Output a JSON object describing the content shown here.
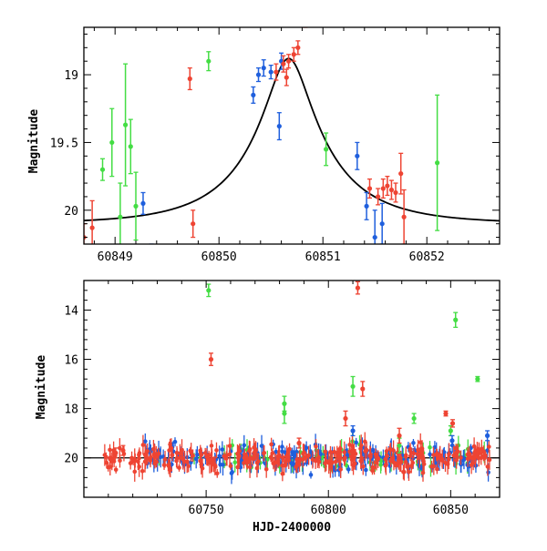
{
  "colors": {
    "green": "#44dd44",
    "blue": "#1f5fdd",
    "red": "#ee4433",
    "curve": "#000000"
  },
  "chart_data": [
    {
      "type": "scatter",
      "title": "",
      "xlabel": "",
      "ylabel": "Magnitude",
      "xlim": [
        60848.7,
        60852.7
      ],
      "ylim": [
        20.25,
        18.65
      ],
      "y_inverted": true,
      "xticks": [
        60849,
        60850,
        60851,
        60852
      ],
      "xtick_labels": [
        "60849",
        "60850",
        "60851",
        "60852"
      ],
      "yticks": [
        19,
        19.5,
        20
      ],
      "ytick_labels": [
        "19",
        "19.5",
        "20"
      ],
      "model_curve": {
        "type": "microlensing",
        "peak_x": 60850.67,
        "peak_mag": 18.88,
        "base_mag": 20.1,
        "u0": 0.235,
        "tE_days": 0.83
      },
      "series": [
        {
          "color": "green",
          "points": [
            {
              "x": 60848.88,
              "y": 19.7,
              "err": 0.08
            },
            {
              "x": 60848.97,
              "y": 19.5,
              "err": 0.25
            },
            {
              "x": 60849.05,
              "y": 20.05,
              "err": 0.25
            },
            {
              "x": 60849.1,
              "y": 19.37,
              "err": 0.45
            },
            {
              "x": 60849.15,
              "y": 19.53,
              "err": 0.2
            },
            {
              "x": 60849.2,
              "y": 19.97,
              "err": 0.25
            },
            {
              "x": 60849.9,
              "y": 18.9,
              "err": 0.07
            },
            {
              "x": 60851.03,
              "y": 19.55,
              "err": 0.12
            },
            {
              "x": 60852.1,
              "y": 19.65,
              "err": 0.5
            }
          ]
        },
        {
          "color": "blue",
          "points": [
            {
              "x": 60849.27,
              "y": 19.95,
              "err": 0.08
            },
            {
              "x": 60849.35,
              "y": 20.3,
              "err": 0.05
            },
            {
              "x": 60850.33,
              "y": 19.15,
              "err": 0.06
            },
            {
              "x": 60850.38,
              "y": 19.0,
              "err": 0.05
            },
            {
              "x": 60850.43,
              "y": 18.95,
              "err": 0.06
            },
            {
              "x": 60850.5,
              "y": 18.98,
              "err": 0.05
            },
            {
              "x": 60850.58,
              "y": 19.38,
              "err": 0.1
            },
            {
              "x": 60850.6,
              "y": 18.9,
              "err": 0.06
            },
            {
              "x": 60851.33,
              "y": 19.6,
              "err": 0.1
            },
            {
              "x": 60851.42,
              "y": 19.97,
              "err": 0.1
            },
            {
              "x": 60851.5,
              "y": 20.2,
              "err": 0.2
            },
            {
              "x": 60851.57,
              "y": 20.1,
              "err": 0.15
            }
          ]
        },
        {
          "color": "red",
          "points": [
            {
              "x": 60848.7,
              "y": 20.2,
              "err": 0.1
            },
            {
              "x": 60848.78,
              "y": 20.13,
              "err": 0.2
            },
            {
              "x": 60849.72,
              "y": 19.03,
              "err": 0.08
            },
            {
              "x": 60849.75,
              "y": 20.1,
              "err": 0.1
            },
            {
              "x": 60850.55,
              "y": 18.98,
              "err": 0.06
            },
            {
              "x": 60850.62,
              "y": 18.92,
              "err": 0.06
            },
            {
              "x": 60850.65,
              "y": 19.02,
              "err": 0.06
            },
            {
              "x": 60850.67,
              "y": 18.9,
              "err": 0.05
            },
            {
              "x": 60850.72,
              "y": 18.85,
              "err": 0.05
            },
            {
              "x": 60850.76,
              "y": 18.8,
              "err": 0.05
            },
            {
              "x": 60850.83,
              "y": 18.6,
              "err": 0.05
            },
            {
              "x": 60851.45,
              "y": 19.84,
              "err": 0.07
            },
            {
              "x": 60851.53,
              "y": 19.9,
              "err": 0.06
            },
            {
              "x": 60851.58,
              "y": 19.84,
              "err": 0.07
            },
            {
              "x": 60851.62,
              "y": 19.82,
              "err": 0.07
            },
            {
              "x": 60851.66,
              "y": 19.85,
              "err": 0.07
            },
            {
              "x": 60851.7,
              "y": 19.87,
              "err": 0.07
            },
            {
              "x": 60851.75,
              "y": 19.73,
              "err": 0.15
            },
            {
              "x": 60851.78,
              "y": 20.05,
              "err": 0.2
            }
          ]
        }
      ]
    },
    {
      "type": "scatter",
      "title": "",
      "xlabel": "HJD-2400000",
      "ylabel": "Magnitude",
      "xlim": [
        60700,
        60870
      ],
      "ylim": [
        21.6,
        12.8
      ],
      "y_inverted": true,
      "xticks": [
        60750,
        60800,
        60850
      ],
      "xtick_labels": [
        "60750",
        "60800",
        "60850"
      ],
      "yticks": [
        14,
        16,
        18,
        20
      ],
      "ytick_labels": [
        "14",
        "16",
        "18",
        "20"
      ],
      "baseline_mag": 20.0,
      "baseline_range": [
        60700,
        60870
      ],
      "baseline_scatter": {
        "red": [
          60708,
          60866
        ],
        "blue": [
          60725,
          60866
        ],
        "green": [
          60730,
          60866
        ]
      },
      "series": [
        {
          "color": "green",
          "points": [
            {
              "x": 60751,
              "y": 13.2,
              "err": 0.25
            },
            {
              "x": 60782,
              "y": 18.2,
              "err": 0.4
            },
            {
              "x": 60782,
              "y": 17.8,
              "err": 0.3
            },
            {
              "x": 60810,
              "y": 17.1,
              "err": 0.4
            },
            {
              "x": 60829,
              "y": 19.5,
              "err": 0.3
            },
            {
              "x": 60835,
              "y": 18.4,
              "err": 0.2
            },
            {
              "x": 60850,
              "y": 18.9,
              "err": 0.2
            },
            {
              "x": 60852,
              "y": 14.4,
              "err": 0.3
            },
            {
              "x": 60861,
              "y": 16.8,
              "err": 0.1
            }
          ]
        },
        {
          "color": "blue",
          "points": [
            {
              "x": 60810,
              "y": 18.9,
              "err": 0.2
            },
            {
              "x": 60850.6,
              "y": 19.3,
              "err": 0.2
            },
            {
              "x": 60865,
              "y": 19.1,
              "err": 0.2
            }
          ]
        },
        {
          "color": "red",
          "points": [
            {
              "x": 60713,
              "y": 19.8,
              "err": 0.2
            },
            {
              "x": 60716,
              "y": 19.7,
              "err": 0.2
            },
            {
              "x": 60752,
              "y": 16.0,
              "err": 0.25
            },
            {
              "x": 60788,
              "y": 19.4,
              "err": 0.2
            },
            {
              "x": 60807,
              "y": 18.4,
              "err": 0.3
            },
            {
              "x": 60812,
              "y": 13.1,
              "err": 0.25
            },
            {
              "x": 60814,
              "y": 17.2,
              "err": 0.3
            },
            {
              "x": 60829,
              "y": 19.1,
              "err": 0.3
            },
            {
              "x": 60848,
              "y": 18.2,
              "err": 0.1
            },
            {
              "x": 60850.8,
              "y": 18.6,
              "err": 0.15
            }
          ]
        }
      ]
    }
  ]
}
